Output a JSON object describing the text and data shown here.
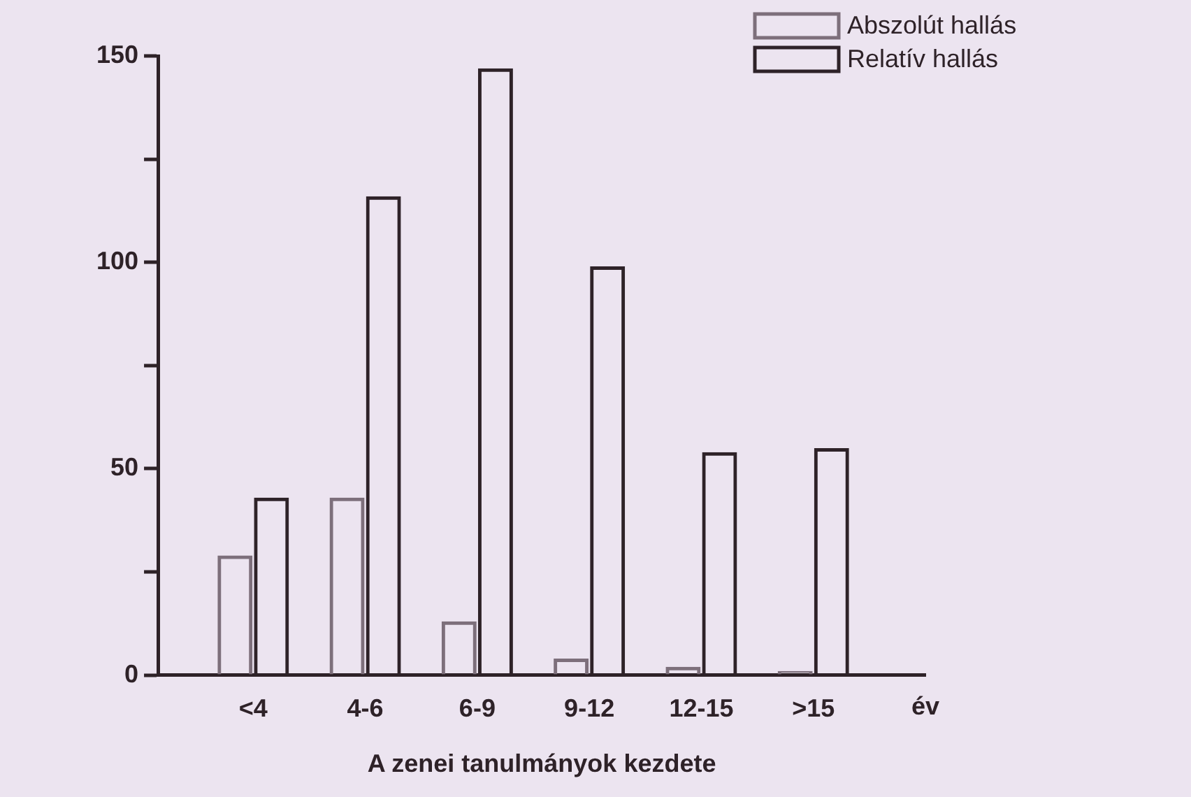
{
  "chart_data": {
    "type": "bar",
    "xlabel": "A zenei tanulmányok kezdete",
    "categories": [
      "<4",
      "4-6",
      "6-9",
      "9-12",
      "12-15",
      ">15"
    ],
    "series": [
      {
        "name": "Abszolút hallás",
        "color": "#7d6f7b",
        "values": [
          29,
          43,
          13,
          4,
          2,
          1
        ]
      },
      {
        "name": "Relatív hallás",
        "color": "#2e2228",
        "values": [
          43,
          116,
          147,
          99,
          54,
          55
        ]
      }
    ],
    "ylim": [
      0,
      150
    ],
    "yticks": [
      0,
      {
        "value": 25,
        "label": null
      },
      50,
      {
        "value": 75,
        "label": null
      },
      100,
      {
        "value": 125,
        "label": null
      },
      150
    ],
    "annotations": [
      "év"
    ],
    "legend": "top right"
  }
}
